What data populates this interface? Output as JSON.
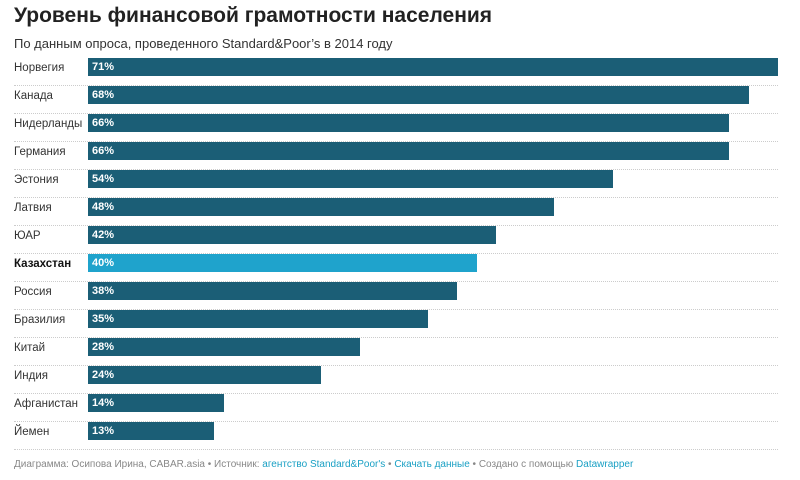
{
  "title": "Уровень финансовой грамотности населения",
  "subtitle": "По данным опроса, проведенного Standard&Poor’s в 2014 году",
  "chart_data": {
    "type": "bar",
    "orientation": "horizontal",
    "categories": [
      "Норвегия",
      "Канада",
      "Нидерланды",
      "Германия",
      "Эстония",
      "Латвия",
      "ЮАР",
      "Казахстан",
      "Россия",
      "Бразилия",
      "Китай",
      "Индия",
      "Афганистан",
      "Йемен"
    ],
    "values": [
      71,
      68,
      66,
      66,
      54,
      48,
      42,
      40,
      38,
      35,
      28,
      24,
      14,
      13
    ],
    "value_labels": [
      "71%",
      "68%",
      "66%",
      "66%",
      "54%",
      "48%",
      "42%",
      "40%",
      "38%",
      "35%",
      "28%",
      "24%",
      "14%",
      "13%"
    ],
    "highlight": "Казахстан",
    "xlim": [
      0,
      71
    ],
    "colors": {
      "bar": "#1b5e76",
      "highlight": "#1fa3cc"
    }
  },
  "footer": {
    "prefix": "Диаграмма: Осипова Ирина, CABAR.asia • Источник: ",
    "source_link": "агентство Standard&Poor's",
    "sep1": " • ",
    "download_link": "Скачать данные",
    "sep2": " • Создано с помощью ",
    "dw_link": "Datawrapper"
  }
}
